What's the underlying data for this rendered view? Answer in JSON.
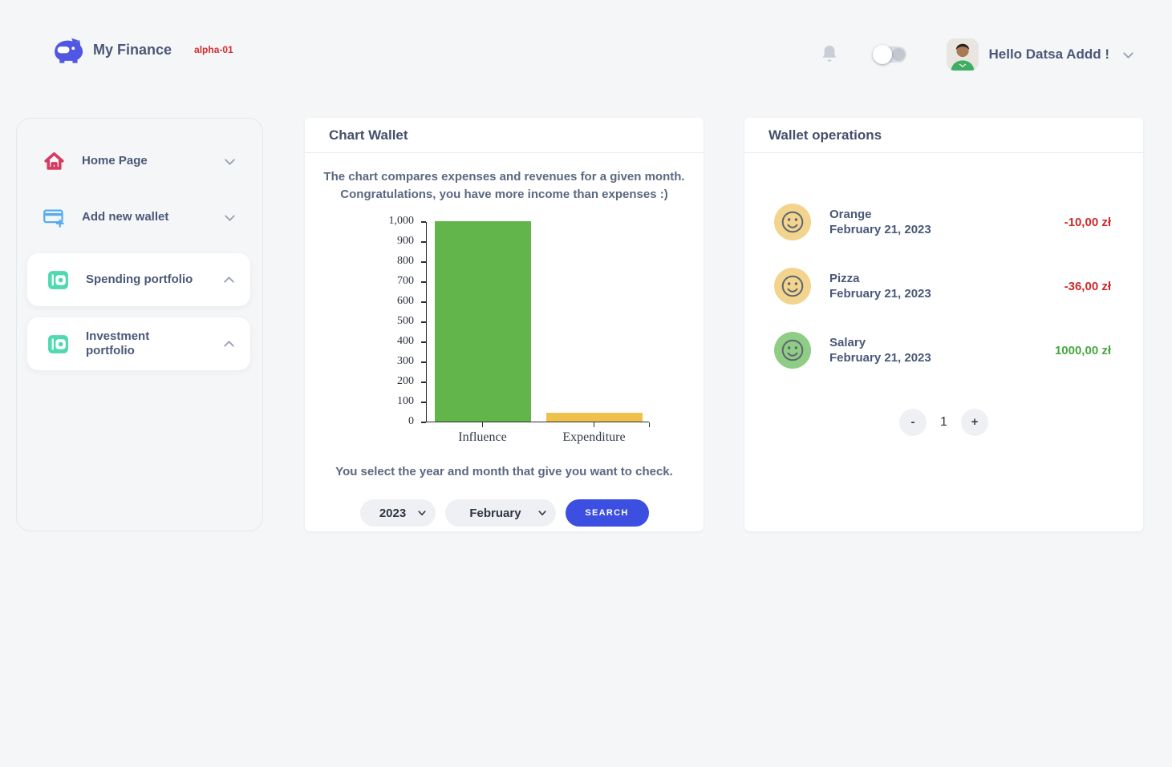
{
  "header": {
    "app_name": "My Finance",
    "version_badge": "alpha-01",
    "greeting": "Hello Datsa Addd !"
  },
  "sidebar": {
    "items": [
      {
        "label": "Home Page",
        "icon": "home-icon",
        "state": "collapsed"
      },
      {
        "label": "Add new wallet",
        "icon": "card-add-icon",
        "state": "collapsed"
      },
      {
        "label": "Spending portfolio",
        "icon": "wallet-icon",
        "state": "expanded"
      },
      {
        "label": "Investment portfolio",
        "icon": "wallet-icon",
        "state": "expanded"
      }
    ]
  },
  "chart_card": {
    "title": "Chart Wallet",
    "description_line1": "The chart compares expenses and revenues for a given month.",
    "description_line2": "Congratulations, you have more income than expenses :)",
    "helper_text": "You select the year and month that give you want to check.",
    "year_value": "2023",
    "month_value": "February",
    "search_label": "SEARCH"
  },
  "chart_data": {
    "type": "bar",
    "categories": [
      "Influence",
      "Expenditure"
    ],
    "values": [
      1000,
      46
    ],
    "bar_colors": [
      "#62b54a",
      "#eec14d"
    ],
    "title": "",
    "xlabel": "",
    "ylabel": "",
    "ylim": [
      0,
      1000
    ],
    "ytick_step": 100,
    "ytick_labels": [
      "0",
      "100",
      "200",
      "300",
      "400",
      "500",
      "600",
      "700",
      "800",
      "900",
      "1,000"
    ],
    "grid": false,
    "legend": false
  },
  "operations_card": {
    "title": "Wallet operations",
    "items": [
      {
        "name": "Orange",
        "date": "February 21, 2023",
        "amount": "-10,00 zł",
        "type": "expense",
        "avatar_color": "#f3d48f"
      },
      {
        "name": "Pizza",
        "date": "February 21, 2023",
        "amount": "-36,00 zł",
        "type": "expense",
        "avatar_color": "#f3d48f"
      },
      {
        "name": "Salary",
        "date": "February 21, 2023",
        "amount": "1000,00 zł",
        "type": "income",
        "avatar_color": "#8fcd86"
      }
    ],
    "pagination": {
      "prev_label": "-",
      "page": "1",
      "next_label": "+"
    }
  },
  "colors": {
    "accent_blue": "#3c4fe1",
    "logo_indigo": "#5157e2",
    "expense_red": "#cb2a2a",
    "income_green": "#46a83c",
    "bar_green": "#62b54a",
    "bar_yellow": "#eec14d",
    "page_bg": "#f5f6f8"
  }
}
